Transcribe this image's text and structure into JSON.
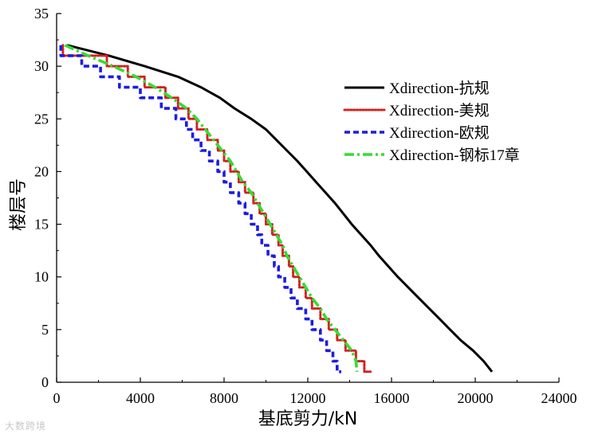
{
  "chart_data": {
    "type": "line",
    "xlabel": "基底剪力/kN",
    "ylabel": "楼层号",
    "xlim": [
      0,
      24000
    ],
    "ylim": [
      0,
      35
    ],
    "xticks": [
      0,
      4000,
      8000,
      12000,
      16000,
      20000,
      24000
    ],
    "yticks": [
      0,
      5,
      10,
      15,
      20,
      25,
      30,
      35
    ],
    "xtick_labels": [
      "0",
      "4000",
      "8000",
      "12000",
      "16000",
      "20000",
      "24000"
    ],
    "ytick_labels": [
      "0",
      "5",
      "10",
      "15",
      "20",
      "25",
      "30",
      "35"
    ],
    "grid": false,
    "legend_position": "top-right",
    "series": [
      {
        "name": "Xdirection-抗规",
        "color": "#000000",
        "style": "solid",
        "step": false,
        "points": [
          [
            500,
            32
          ],
          [
            2500,
            31
          ],
          [
            4200,
            30
          ],
          [
            5800,
            29
          ],
          [
            6900,
            28
          ],
          [
            7800,
            27
          ],
          [
            8500,
            26
          ],
          [
            9300,
            25
          ],
          [
            10000,
            24
          ],
          [
            10500,
            23
          ],
          [
            11000,
            22
          ],
          [
            11500,
            21
          ],
          [
            11950,
            20
          ],
          [
            12400,
            19
          ],
          [
            12850,
            18
          ],
          [
            13300,
            17
          ],
          [
            13700,
            16
          ],
          [
            14100,
            15
          ],
          [
            14550,
            14
          ],
          [
            15000,
            13
          ],
          [
            15400,
            12
          ],
          [
            15850,
            11
          ],
          [
            16300,
            10
          ],
          [
            16800,
            9
          ],
          [
            17300,
            8
          ],
          [
            17800,
            7
          ],
          [
            18300,
            6
          ],
          [
            18800,
            5
          ],
          [
            19300,
            4
          ],
          [
            19900,
            3
          ],
          [
            20400,
            2
          ],
          [
            20800,
            1
          ]
        ]
      },
      {
        "name": "Xdirection-美规",
        "color": "#d42020",
        "style": "dotted",
        "step": true,
        "points": [
          [
            300,
            32
          ],
          [
            300,
            31
          ],
          [
            1300,
            31
          ],
          [
            1300,
            31
          ],
          [
            2400,
            31
          ],
          [
            2400,
            30
          ],
          [
            3400,
            30
          ],
          [
            3400,
            29
          ],
          [
            4200,
            29
          ],
          [
            4200,
            28
          ],
          [
            5200,
            28
          ],
          [
            5200,
            27
          ],
          [
            5800,
            27
          ],
          [
            5800,
            26
          ],
          [
            6300,
            26
          ],
          [
            6300,
            25
          ],
          [
            6700,
            25
          ],
          [
            6700,
            24
          ],
          [
            7200,
            24
          ],
          [
            7200,
            23
          ],
          [
            7700,
            23
          ],
          [
            7700,
            22
          ],
          [
            8000,
            22
          ],
          [
            8000,
            21
          ],
          [
            8300,
            21
          ],
          [
            8300,
            20
          ],
          [
            8700,
            20
          ],
          [
            8700,
            19
          ],
          [
            9000,
            19
          ],
          [
            9000,
            18
          ],
          [
            9400,
            18
          ],
          [
            9400,
            17
          ],
          [
            9700,
            17
          ],
          [
            9700,
            16
          ],
          [
            10000,
            16
          ],
          [
            10000,
            15
          ],
          [
            10300,
            15
          ],
          [
            10300,
            14
          ],
          [
            10600,
            14
          ],
          [
            10600,
            13
          ],
          [
            10800,
            13
          ],
          [
            10800,
            12
          ],
          [
            11100,
            12
          ],
          [
            11100,
            11
          ],
          [
            11300,
            11
          ],
          [
            11300,
            10
          ],
          [
            11600,
            10
          ],
          [
            11600,
            9
          ],
          [
            11900,
            9
          ],
          [
            11900,
            8
          ],
          [
            12200,
            8
          ],
          [
            12200,
            7
          ],
          [
            12600,
            7
          ],
          [
            12600,
            6
          ],
          [
            13000,
            6
          ],
          [
            13000,
            5
          ],
          [
            13400,
            5
          ],
          [
            13400,
            4
          ],
          [
            13800,
            4
          ],
          [
            13800,
            3
          ],
          [
            14300,
            3
          ],
          [
            14300,
            2
          ],
          [
            14700,
            2
          ],
          [
            14700,
            1
          ],
          [
            15000,
            1
          ]
        ]
      },
      {
        "name": "Xdirection-欧规",
        "color": "#1c1ce0",
        "style": "dashed",
        "step": true,
        "points": [
          [
            200,
            32
          ],
          [
            200,
            31
          ],
          [
            1200,
            31
          ],
          [
            1200,
            30
          ],
          [
            2100,
            30
          ],
          [
            2100,
            29
          ],
          [
            3000,
            29
          ],
          [
            3000,
            28
          ],
          [
            4000,
            28
          ],
          [
            4000,
            27
          ],
          [
            5000,
            27
          ],
          [
            5000,
            26
          ],
          [
            5700,
            26
          ],
          [
            5700,
            25
          ],
          [
            6200,
            25
          ],
          [
            6200,
            24
          ],
          [
            6500,
            24
          ],
          [
            6500,
            23
          ],
          [
            6900,
            23
          ],
          [
            6900,
            22
          ],
          [
            7300,
            22
          ],
          [
            7300,
            21
          ],
          [
            7700,
            21
          ],
          [
            7700,
            20
          ],
          [
            8000,
            20
          ],
          [
            8000,
            19
          ],
          [
            8300,
            19
          ],
          [
            8300,
            18
          ],
          [
            8700,
            18
          ],
          [
            8700,
            17
          ],
          [
            9000,
            17
          ],
          [
            9000,
            16
          ],
          [
            9300,
            16
          ],
          [
            9300,
            15
          ],
          [
            9600,
            15
          ],
          [
            9600,
            14
          ],
          [
            9800,
            14
          ],
          [
            9800,
            13
          ],
          [
            10100,
            13
          ],
          [
            10100,
            12
          ],
          [
            10400,
            12
          ],
          [
            10400,
            11
          ],
          [
            10600,
            11
          ],
          [
            10600,
            10
          ],
          [
            10900,
            10
          ],
          [
            10900,
            9
          ],
          [
            11200,
            9
          ],
          [
            11200,
            8
          ],
          [
            11500,
            8
          ],
          [
            11500,
            7
          ],
          [
            11900,
            7
          ],
          [
            11900,
            6
          ],
          [
            12200,
            6
          ],
          [
            12200,
            5
          ],
          [
            12600,
            5
          ],
          [
            12600,
            4
          ],
          [
            12900,
            4
          ],
          [
            12900,
            3
          ],
          [
            13200,
            3
          ],
          [
            13200,
            2
          ],
          [
            13400,
            2
          ],
          [
            13400,
            1
          ],
          [
            13600,
            1
          ]
        ]
      },
      {
        "name": "Xdirection-钢标17章",
        "color": "#33dd33",
        "style": "dashdot",
        "step": false,
        "points": [
          [
            400,
            32
          ],
          [
            1500,
            31
          ],
          [
            2700,
            30
          ],
          [
            3800,
            29
          ],
          [
            4700,
            28
          ],
          [
            5500,
            27
          ],
          [
            6200,
            26
          ],
          [
            6700,
            25
          ],
          [
            7100,
            24
          ],
          [
            7500,
            23
          ],
          [
            7900,
            22
          ],
          [
            8300,
            21
          ],
          [
            8600,
            20
          ],
          [
            8900,
            19
          ],
          [
            9300,
            18
          ],
          [
            9600,
            17
          ],
          [
            9900,
            16
          ],
          [
            10200,
            15
          ],
          [
            10500,
            14
          ],
          [
            10800,
            13
          ],
          [
            11000,
            12
          ],
          [
            11300,
            11
          ],
          [
            11600,
            10
          ],
          [
            11900,
            9
          ],
          [
            12200,
            8
          ],
          [
            12600,
            7
          ],
          [
            12900,
            6
          ],
          [
            13300,
            5
          ],
          [
            13700,
            4
          ],
          [
            14100,
            3
          ],
          [
            14300,
            2
          ],
          [
            14350,
            1
          ]
        ]
      }
    ]
  },
  "watermark": "大数跨境"
}
